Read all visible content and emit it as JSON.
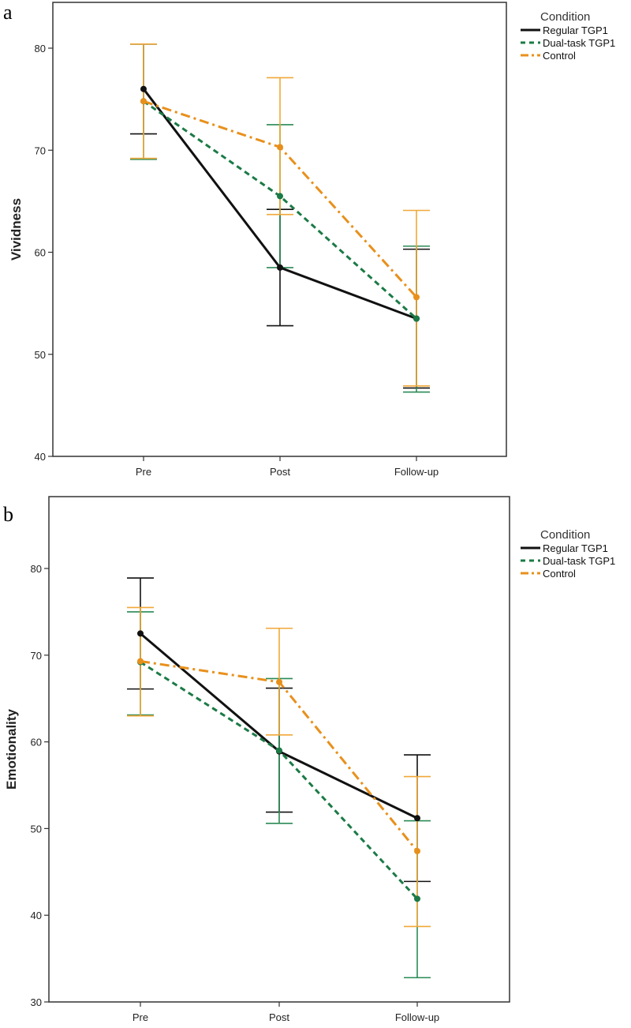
{
  "chart_data": [
    {
      "type": "line",
      "panel_label": "a",
      "ylabel": "Vividness",
      "xlabel": "",
      "categories": [
        "Pre",
        "Post",
        "Follow-up"
      ],
      "ylim": [
        40,
        85
      ],
      "yticks": [
        40,
        50,
        60,
        70,
        80
      ],
      "grid": false,
      "legend": {
        "title": "Condition",
        "placement": "right"
      },
      "series": [
        {
          "name": "Regular TGP1",
          "color": "#111111",
          "bar_color": "#111111",
          "dash": "solid",
          "values": [
            76.0,
            58.5,
            53.5
          ],
          "ci_low": [
            71.6,
            52.8,
            46.7
          ],
          "ci_high": [
            80.4,
            64.2,
            60.3
          ]
        },
        {
          "name": "Dual-task TGP1",
          "color": "#1b7a46",
          "bar_color": "#2a8a55",
          "dash": "dashed",
          "values": [
            74.8,
            65.5,
            53.5
          ],
          "ci_low": [
            69.1,
            58.5,
            46.3
          ],
          "ci_high": [
            80.4,
            72.5,
            60.6
          ]
        },
        {
          "name": "Control",
          "color": "#e8901c",
          "bar_color": "#f0a838",
          "dash": "dashdot",
          "values": [
            74.8,
            70.3,
            55.6
          ],
          "ci_low": [
            69.2,
            63.7,
            46.9
          ],
          "ci_high": [
            80.4,
            77.1,
            64.1
          ]
        }
      ]
    },
    {
      "type": "line",
      "panel_label": "b",
      "ylabel": "Emotionality",
      "xlabel": "",
      "categories": [
        "Pre",
        "Post",
        "Follow-up"
      ],
      "ylim": [
        30,
        85
      ],
      "yticks": [
        30,
        40,
        50,
        60,
        70,
        80
      ],
      "grid": false,
      "legend": {
        "title": "Condition",
        "placement": "right"
      },
      "series": [
        {
          "name": "Regular TGP1",
          "color": "#111111",
          "bar_color": "#111111",
          "dash": "solid",
          "values": [
            72.5,
            58.9,
            51.2
          ],
          "ci_low": [
            66.1,
            51.9,
            43.9
          ],
          "ci_high": [
            78.9,
            66.2,
            58.5
          ]
        },
        {
          "name": "Dual-task TGP1",
          "color": "#1b7a46",
          "bar_color": "#2a8a55",
          "dash": "dashed",
          "values": [
            69.2,
            59.0,
            41.9
          ],
          "ci_low": [
            63.1,
            50.6,
            32.8
          ],
          "ci_high": [
            75.0,
            67.3,
            50.9
          ]
        },
        {
          "name": "Control",
          "color": "#e8901c",
          "bar_color": "#f0a838",
          "dash": "dashdot",
          "values": [
            69.3,
            66.9,
            47.4
          ],
          "ci_low": [
            63.0,
            60.8,
            38.7
          ],
          "ci_high": [
            75.5,
            73.1,
            56.0
          ]
        }
      ]
    }
  ]
}
